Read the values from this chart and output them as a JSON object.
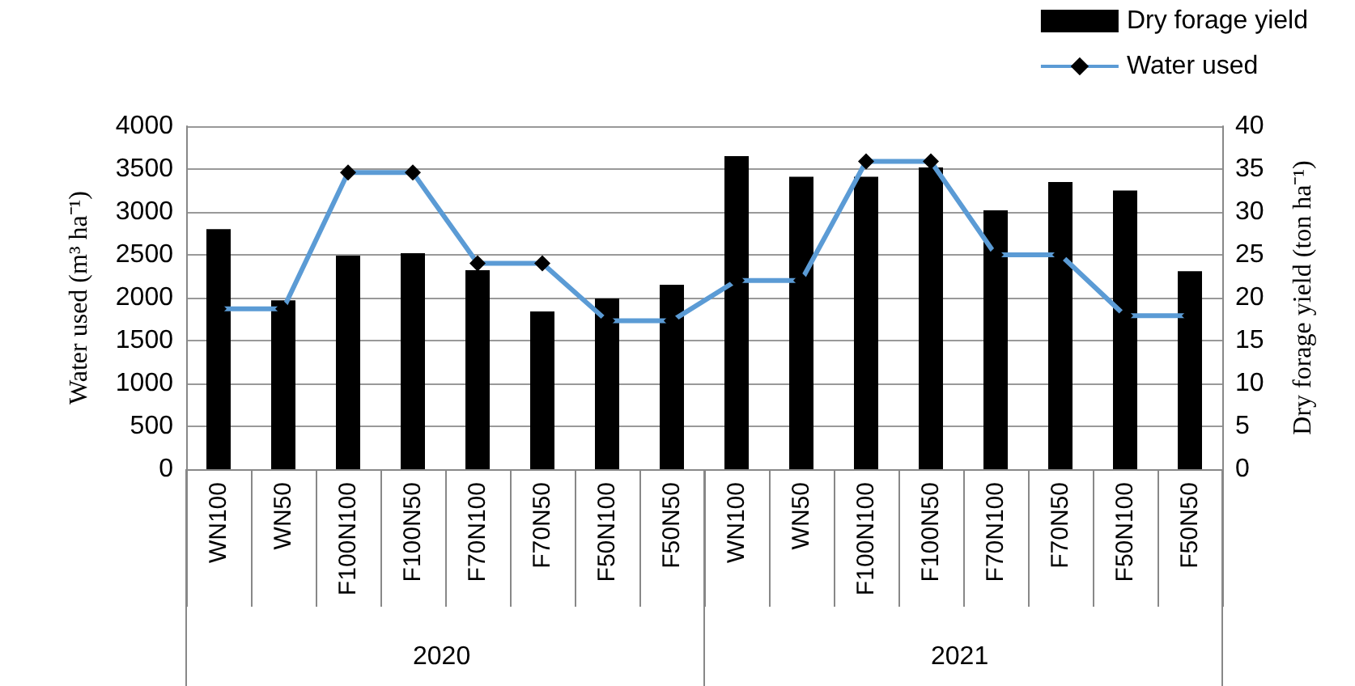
{
  "chart_data": {
    "type": "bar",
    "categories": [
      "WN100",
      "WN50",
      "F100N100",
      "F100N50",
      "F70N100",
      "F70N50",
      "F50N100",
      "F50N50",
      "WN100",
      "WN50",
      "F100N100",
      "F100N50",
      "F70N100",
      "F70N50",
      "F50N100",
      "F50N50"
    ],
    "series": [
      {
        "name": "Dry forage yield",
        "axis": "y2",
        "color": "#000000",
        "values": [
          28.0,
          19.7,
          24.9,
          25.2,
          23.2,
          18.4,
          19.9,
          21.5,
          36.5,
          34.1,
          34.1,
          35.2,
          30.2,
          33.5,
          32.5,
          23.1
        ]
      },
      {
        "name": "Water used",
        "type": "line",
        "color": "#5b9bd5",
        "marker": "diamond",
        "values": [
          1870,
          1870,
          3460,
          3460,
          2400,
          2400,
          1730,
          1730,
          2200,
          2200,
          3590,
          3590,
          2500,
          2500,
          1790,
          1790
        ]
      }
    ],
    "ylabel": "Water used (m³ ha⁻¹)",
    "y2label": "Dry forage yield (ton ha⁻¹)",
    "ylim": [
      0,
      4000
    ],
    "yticks": [
      0,
      500,
      1000,
      1500,
      2000,
      2500,
      3000,
      3500,
      4000
    ],
    "y2lim": [
      0,
      40
    ],
    "y2ticks": [
      0,
      5,
      10,
      15,
      20,
      25,
      30,
      35,
      40
    ],
    "annotations": [
      "2020",
      "2021"
    ],
    "grid": "y",
    "legend": "top right"
  }
}
